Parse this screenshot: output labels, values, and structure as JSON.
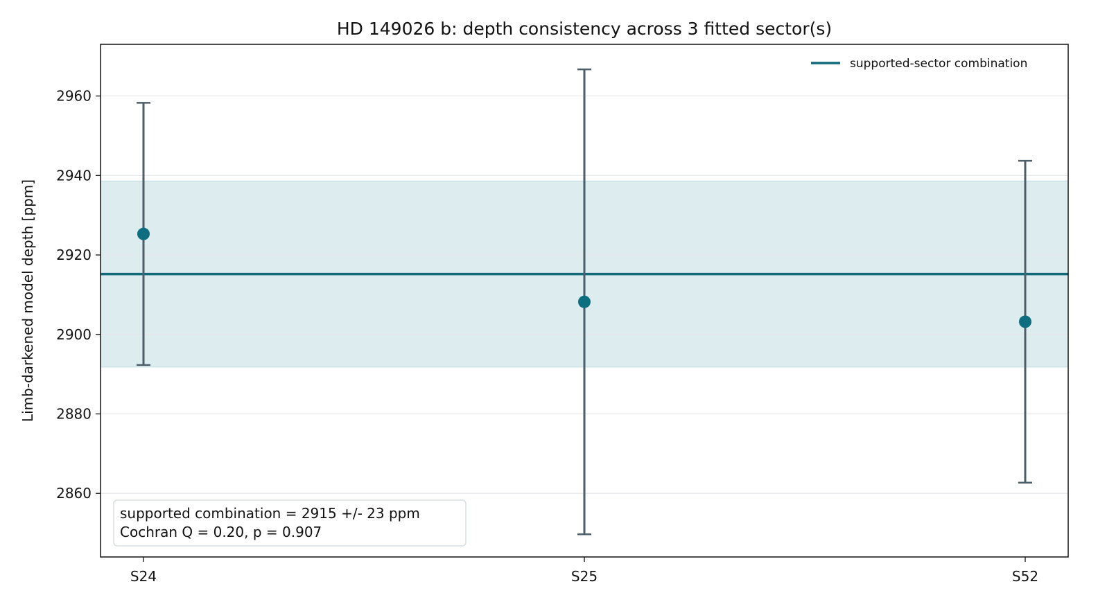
{
  "chart_data": {
    "type": "scatter",
    "title": "HD 149026 b: depth consistency across 3 fitted sector(s)",
    "xlabel": "",
    "ylabel": "Limb-darkened model depth [ppm]",
    "categories": [
      "S24",
      "S25",
      "S52"
    ],
    "series": [
      {
        "values": [
          2925.3,
          2908.2,
          2903.2
        ],
        "err_low": [
          33.0,
          58.5,
          40.5
        ],
        "err_high": [
          33.0,
          58.5,
          40.5
        ],
        "color": "#0e6e80",
        "errorbar_color": "#4d5e6b"
      }
    ],
    "combination": {
      "name": "supported-sector combination",
      "value": 2915.2,
      "band": [
        2891.8,
        2938.6
      ],
      "line_color": "#11687a",
      "band_color": "#ddecef"
    },
    "ylim": [
      2844,
      2973
    ],
    "yticks": [
      2860,
      2880,
      2900,
      2920,
      2940,
      2960
    ],
    "grid": true,
    "legend_position": "top-right",
    "annotation": {
      "line1": "supported combination = 2915 +/- 23 ppm",
      "line2": "Cochran Q = 0.20, p = 0.907"
    }
  }
}
